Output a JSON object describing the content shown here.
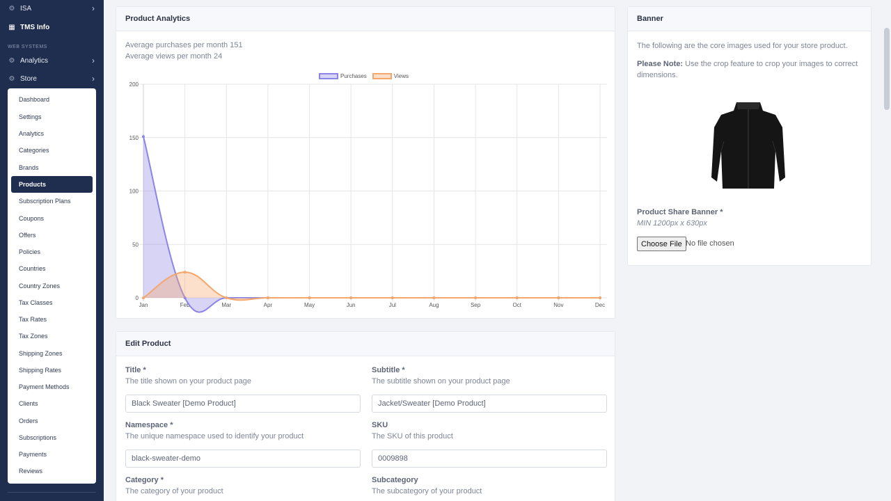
{
  "sidebar": {
    "top_items": [
      {
        "label": "ISA",
        "icon": "cube-icon"
      },
      {
        "label": "TMS Info",
        "icon": "info-icon"
      }
    ],
    "section_heading": "WEB SYSTEMS",
    "section_items": [
      {
        "label": "Analytics",
        "icon": "gear-icon"
      },
      {
        "label": "Store",
        "icon": "gear-icon"
      }
    ],
    "store_menu": [
      "Dashboard",
      "Settings",
      "Analytics",
      "Categories",
      "Brands",
      "Products",
      "Subscription Plans",
      "Coupons",
      "Offers",
      "Policies",
      "Countries",
      "Country Zones",
      "Tax Classes",
      "Tax Rates",
      "Tax Zones",
      "Shipping Zones",
      "Shipping Rates",
      "Payment Methods",
      "Clients",
      "Orders",
      "Subscriptions",
      "Payments",
      "Reviews"
    ],
    "active_item": "Products"
  },
  "analytics": {
    "title": "Product Analytics",
    "avg_purchases": "Average purchases per month 151",
    "avg_views": "Average views per month 24"
  },
  "chart_data": {
    "type": "area",
    "categories": [
      "Jan",
      "Feb",
      "Mar",
      "Apr",
      "May",
      "Jun",
      "Jul",
      "Aug",
      "Sep",
      "Oct",
      "Nov",
      "Dec"
    ],
    "series": [
      {
        "name": "Purchases",
        "values": [
          151,
          0,
          0,
          0,
          0,
          0,
          0,
          0,
          0,
          0,
          0,
          0
        ],
        "color": "#8c84e6",
        "fill": "rgba(140,132,230,0.35)"
      },
      {
        "name": "Views",
        "values": [
          0,
          24,
          0,
          0,
          0,
          0,
          0,
          0,
          0,
          0,
          0,
          0
        ],
        "color": "#f5a66b",
        "fill": "rgba(245,166,107,0.35)"
      }
    ],
    "yticks": [
      0,
      50,
      100,
      150,
      200
    ],
    "ylim": [
      0,
      200
    ],
    "grid": true,
    "legend": "top-center"
  },
  "banner": {
    "title": "Banner",
    "intro": "The following are the core images used for your store product.",
    "note_label": "Please Note:",
    "note_text": " Use the crop feature to crop your images to correct dimensions.",
    "share_label": "Product Share Banner *",
    "min_size": "MIN 1200px x 630px",
    "choose_file": "Choose File",
    "no_file": "No file chosen"
  },
  "edit": {
    "title": "Edit Product",
    "fields": {
      "title": {
        "label": "Title *",
        "help": "The title shown on your product page",
        "value": "Black Sweater [Demo Product]"
      },
      "subtitle": {
        "label": "Subtitle *",
        "help": "The subtitle shown on your product page",
        "value": "Jacket/Sweater [Demo Product]"
      },
      "namespace": {
        "label": "Namespace *",
        "help": "The unique namespace used to identify your product",
        "value": "black-sweater-demo"
      },
      "sku": {
        "label": "SKU",
        "help": "The SKU of this product",
        "value": "0009898"
      },
      "category": {
        "label": "Category *",
        "help": "The category of your product"
      },
      "subcategory": {
        "label": "Subcategory",
        "help": "The subcategory of your product"
      }
    }
  }
}
